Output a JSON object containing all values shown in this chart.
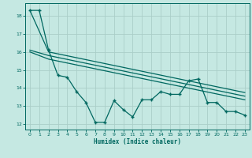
{
  "xlabel": "Humidex (Indice chaleur)",
  "background_color": "#c5e8e2",
  "grid_color": "#aacec8",
  "line_color": "#006860",
  "xlim": [
    -0.5,
    23.5
  ],
  "ylim": [
    11.7,
    18.7
  ],
  "yticks": [
    12,
    13,
    14,
    15,
    16,
    17,
    18
  ],
  "xticks": [
    0,
    1,
    2,
    3,
    4,
    5,
    6,
    7,
    8,
    9,
    10,
    11,
    12,
    13,
    14,
    15,
    16,
    17,
    18,
    19,
    20,
    21,
    22,
    23
  ],
  "line1_x": [
    0,
    1,
    2,
    3,
    4,
    5,
    6,
    7,
    8,
    9,
    10,
    11,
    12,
    13,
    14,
    15,
    16,
    17,
    18,
    19,
    20,
    21,
    22,
    23
  ],
  "line1_y": [
    18.3,
    18.3,
    16.1,
    14.7,
    14.6,
    13.8,
    13.2,
    12.1,
    12.1,
    13.3,
    12.8,
    12.4,
    13.35,
    13.35,
    13.8,
    13.65,
    13.65,
    14.4,
    14.5,
    13.2,
    13.2,
    12.7,
    12.7,
    12.5
  ],
  "line2_x": [
    0,
    2,
    23
  ],
  "line2_y": [
    18.3,
    16.0,
    13.75
  ],
  "line3_x": [
    0,
    2,
    23
  ],
  "line3_y": [
    16.1,
    15.8,
    13.55
  ],
  "line4_x": [
    0,
    2,
    23
  ],
  "line4_y": [
    16.0,
    15.6,
    13.35
  ]
}
